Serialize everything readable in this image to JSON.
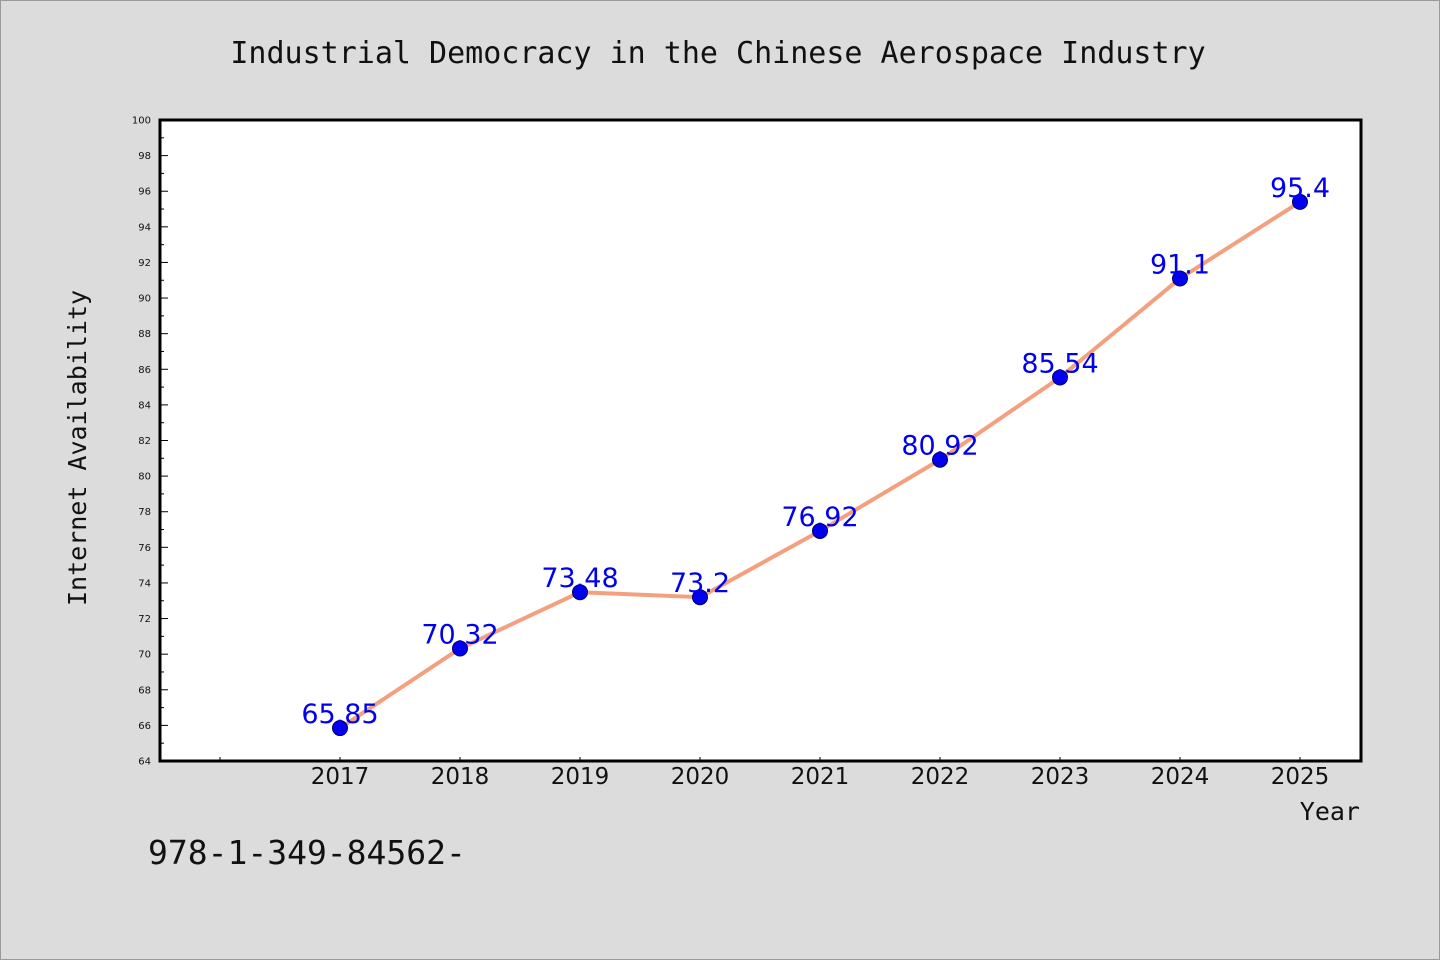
{
  "chart_data": {
    "type": "line",
    "title": "Industrial Democracy in the Chinese Aerospace Industry",
    "xlabel": "Year",
    "ylabel": "Internet Availability",
    "categories": [
      "2017",
      "2018",
      "2019",
      "2020",
      "2021",
      "2022",
      "2023",
      "2024",
      "2025"
    ],
    "series": [
      {
        "values": [
          65.85,
          70.32,
          73.48,
          73.2,
          76.92,
          80.92,
          85.54,
          91.1,
          95.4
        ],
        "labels": [
          "65.85",
          "70.32",
          "73.48",
          "73.2",
          "76.92",
          "80.92",
          "85.54",
          "91.1",
          "95.4"
        ],
        "line_color": "#f4a07e",
        "marker_color": "#0000ee"
      }
    ],
    "ylim": [
      64,
      100
    ],
    "yticks": [
      "64",
      "66",
      "68",
      "70",
      "72",
      "74",
      "76",
      "78",
      "80",
      "82",
      "84",
      "86",
      "88",
      "90",
      "92",
      "94",
      "96",
      "98",
      "100"
    ],
    "grid": false,
    "legend": "none"
  },
  "footer": {
    "text": "978-1-349-84562-"
  },
  "colors": {
    "background": "#dcdcdc",
    "plot_background": "#ffffff",
    "line": "#f4a07e",
    "marker": "#0000ee",
    "data_label": "#0000ee"
  }
}
